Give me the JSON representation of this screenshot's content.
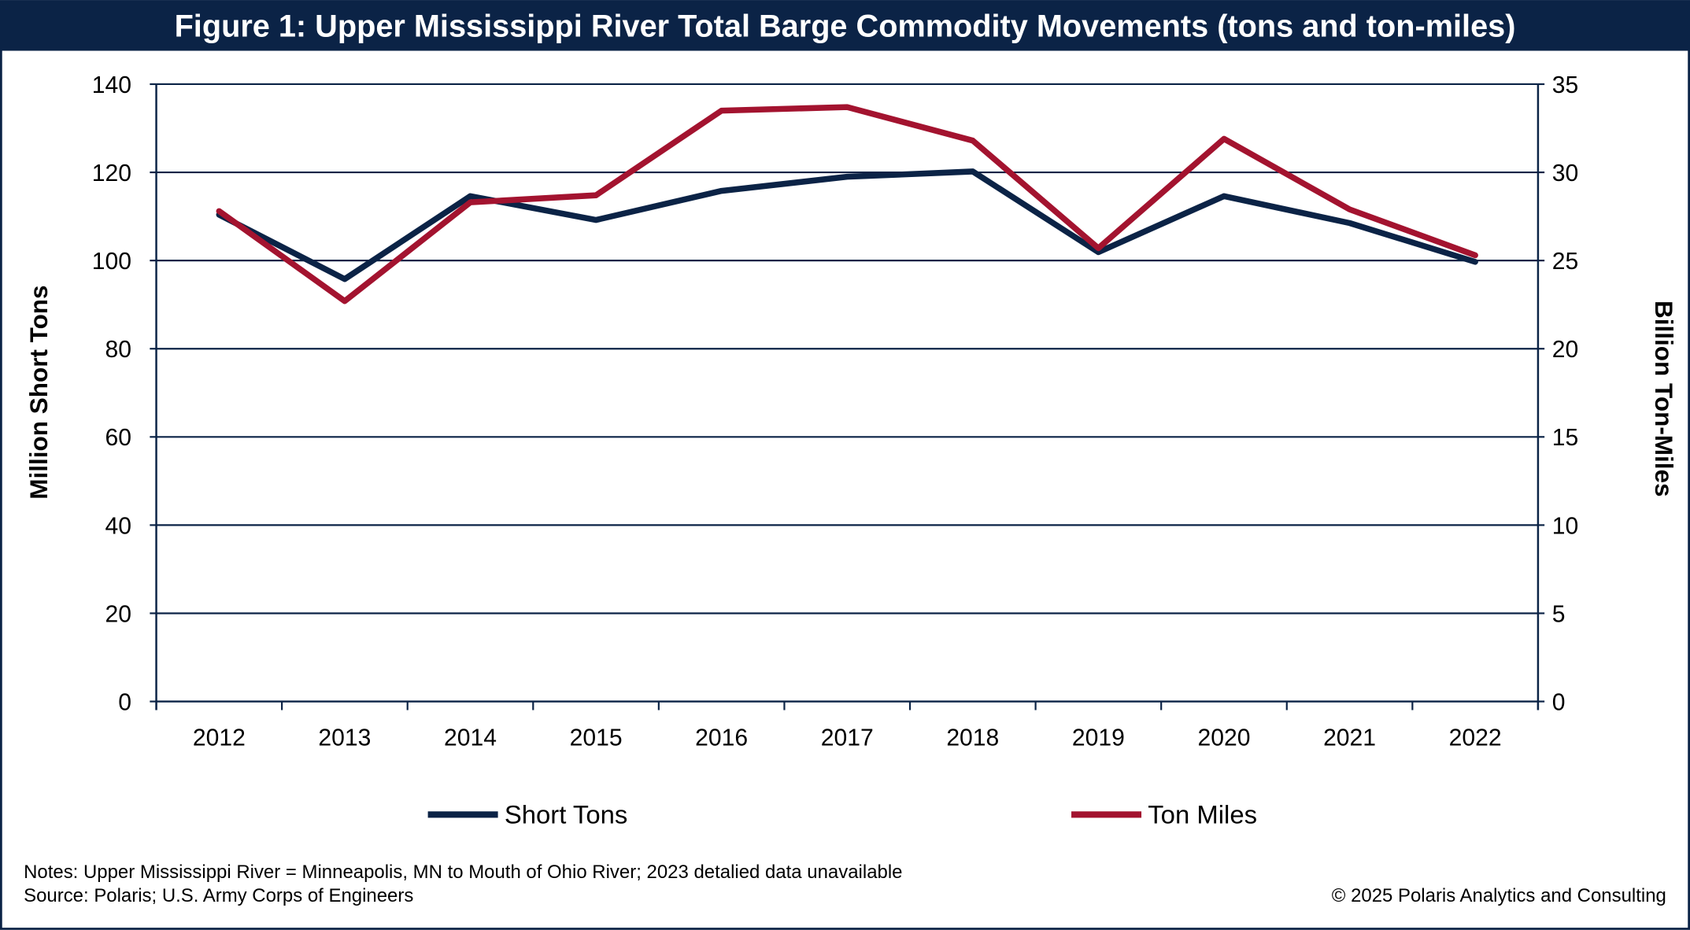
{
  "chart_data": {
    "type": "line",
    "title": "Figure 1: Upper Mississippi River Total Barge Commodity Movements (tons and ton-miles)",
    "categories": [
      "2012",
      "2013",
      "2014",
      "2015",
      "2016",
      "2017",
      "2018",
      "2019",
      "2020",
      "2021",
      "2022"
    ],
    "ylabel": "Million Short Tons",
    "y2label": "Billion Ton-Miles",
    "ylim": [
      0,
      140
    ],
    "y2lim": [
      0,
      35
    ],
    "yticks": [
      "0",
      "20",
      "40",
      "60",
      "80",
      "100",
      "120",
      "140"
    ],
    "y2ticks": [
      "0",
      "5",
      "10",
      "15",
      "20",
      "25",
      "30",
      "35"
    ],
    "grid": true,
    "legend_position": "bottom",
    "series": [
      {
        "name": "Short Tons",
        "axis": "left",
        "color": "#0b2346",
        "values": [
          110.4,
          95.8,
          114.6,
          109.2,
          115.8,
          119.0,
          120.2,
          101.9,
          114.6,
          108.5,
          99.7
        ]
      },
      {
        "name": "Ton Miles",
        "axis": "right",
        "color": "#a3132f",
        "values": [
          27.8,
          22.7,
          28.3,
          28.7,
          33.5,
          33.7,
          31.8,
          25.7,
          31.9,
          27.9,
          25.3
        ]
      }
    ],
    "notes": "Notes: Upper Mississippi River = Minneapolis, MN to Mouth of Ohio River; 2023 detalied data unavailable",
    "source": "Source: Polaris; U.S. Army Corps of Engineers",
    "copyright": "© 2025 Polaris Analytics and Consulting"
  },
  "colors": {
    "frame": "#0b2346"
  }
}
